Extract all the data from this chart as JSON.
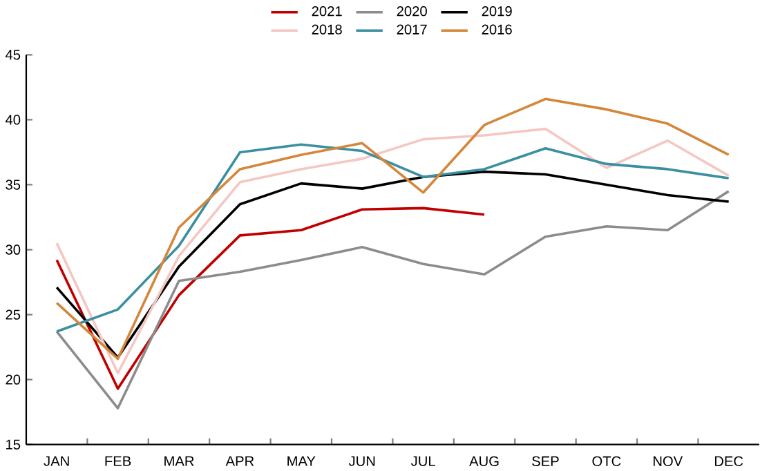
{
  "chart_data": {
    "type": "line",
    "categories": [
      "JAN",
      "FEB",
      "MAR",
      "APR",
      "MAY",
      "JUN",
      "JUL",
      "AUG",
      "SEP",
      "OTC",
      "NOV",
      "DEC"
    ],
    "ylim": [
      15,
      45
    ],
    "yticks": [
      15,
      20,
      25,
      30,
      35,
      40,
      45
    ],
    "legend": "top",
    "grid": false,
    "marker": "none",
    "series": [
      {
        "name": "2021",
        "color": "#c00000",
        "values": [
          29.2,
          19.3,
          26.5,
          31.1,
          31.5,
          33.1,
          33.2,
          32.7,
          null,
          null,
          null,
          null
        ]
      },
      {
        "name": "2020",
        "color": "#8c8c8c",
        "values": [
          23.7,
          17.8,
          27.6,
          28.3,
          29.2,
          30.2,
          28.9,
          28.1,
          31.0,
          31.8,
          31.5,
          34.5
        ]
      },
      {
        "name": "2019",
        "color": "#000000",
        "values": [
          27.1,
          21.7,
          28.7,
          33.5,
          35.1,
          34.7,
          35.6,
          36.0,
          35.8,
          35.0,
          34.2,
          33.7
        ]
      },
      {
        "name": "2018",
        "color": "#f4c7c3",
        "values": [
          30.5,
          20.5,
          29.5,
          35.2,
          36.2,
          37.0,
          38.5,
          38.8,
          39.3,
          36.3,
          38.4,
          35.7
        ]
      },
      {
        "name": "2017",
        "color": "#3a8fa0",
        "values": [
          23.7,
          25.4,
          30.3,
          37.5,
          38.1,
          37.6,
          35.6,
          36.2,
          37.8,
          36.6,
          36.2,
          35.5
        ]
      },
      {
        "name": "2016",
        "color": "#d4873a",
        "values": [
          25.9,
          21.6,
          31.7,
          36.2,
          37.3,
          38.2,
          34.4,
          39.6,
          41.6,
          40.8,
          39.7,
          37.3
        ]
      }
    ]
  }
}
